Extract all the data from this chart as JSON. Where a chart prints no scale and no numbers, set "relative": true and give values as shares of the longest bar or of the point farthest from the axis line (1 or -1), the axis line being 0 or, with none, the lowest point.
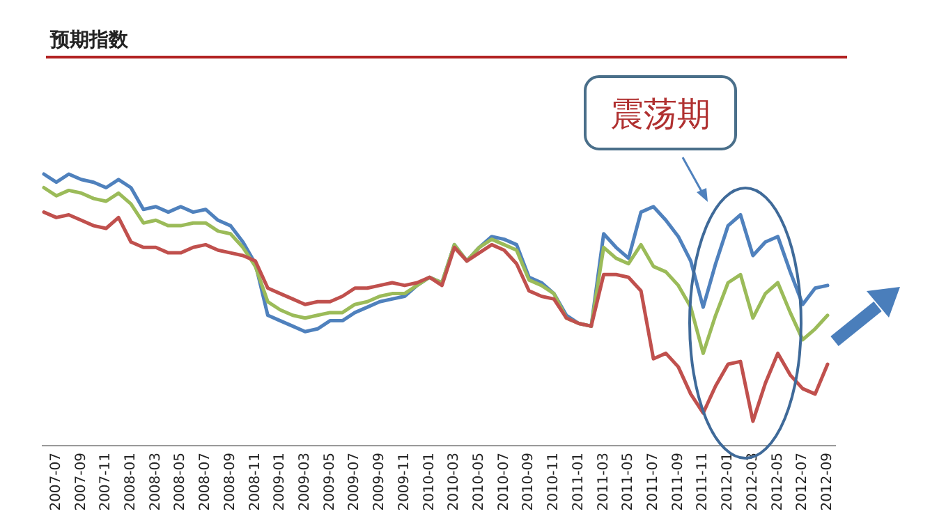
{
  "chart_data": {
    "type": "line",
    "title": "预期指数",
    "annotations": [
      "震荡期"
    ],
    "relative": true,
    "categories": [
      null,
      "2007-07",
      null,
      "2007-09",
      null,
      "2007-11",
      null,
      "2008-01",
      null,
      "2008-03",
      null,
      "2008-05",
      null,
      "2008-07",
      null,
      "2008-09",
      null,
      "2008-11",
      null,
      "2009-01",
      null,
      "2009-03",
      null,
      "2009-05",
      null,
      "2009-07",
      null,
      "2009-09",
      null,
      "2009-11",
      null,
      "2010-01",
      null,
      "2010-03",
      null,
      "2010-05",
      null,
      "2010-07",
      null,
      "2010-09",
      null,
      "2010-11",
      null,
      "2011-01",
      null,
      "2011-03",
      null,
      "2011-05",
      null,
      "2011-07",
      null,
      "2011-09",
      null,
      "2011-11",
      null,
      "2012-01",
      null,
      "2012-03",
      null,
      "2012-05",
      null,
      "2012-07",
      null,
      "2012-09"
    ],
    "series": [
      {
        "color": "#4f81bd",
        "values": [
          1.0,
          0.97,
          1.0,
          0.98,
          0.97,
          0.95,
          0.98,
          0.95,
          0.87,
          0.88,
          0.86,
          0.88,
          0.86,
          0.87,
          0.83,
          0.81,
          0.75,
          0.67,
          0.48,
          0.46,
          0.44,
          0.42,
          0.43,
          0.46,
          0.46,
          0.49,
          0.51,
          0.53,
          0.54,
          0.55,
          0.59,
          0.62,
          0.6,
          0.74,
          0.68,
          0.73,
          0.77,
          0.76,
          0.74,
          0.62,
          0.6,
          0.56,
          0.48,
          0.45,
          0.44,
          0.78,
          0.73,
          0.69,
          0.86,
          0.88,
          0.83,
          0.77,
          0.68,
          0.51,
          0.67,
          0.81,
          0.85,
          0.7,
          0.75,
          0.77,
          0.64,
          0.52,
          0.58,
          0.59
        ]
      },
      {
        "color": "#9bbb59",
        "values": [
          0.95,
          0.92,
          0.94,
          0.93,
          0.91,
          0.9,
          0.93,
          0.89,
          0.82,
          0.83,
          0.81,
          0.81,
          0.82,
          0.82,
          0.79,
          0.78,
          0.73,
          0.66,
          0.53,
          0.5,
          0.48,
          0.47,
          0.48,
          0.49,
          0.49,
          0.52,
          0.53,
          0.55,
          0.56,
          0.56,
          0.59,
          0.62,
          0.6,
          0.74,
          0.68,
          0.73,
          0.76,
          0.74,
          0.72,
          0.61,
          0.59,
          0.56,
          0.47,
          0.45,
          0.44,
          0.73,
          0.69,
          0.67,
          0.74,
          0.66,
          0.64,
          0.59,
          0.51,
          0.34,
          0.48,
          0.6,
          0.63,
          0.47,
          0.56,
          0.6,
          0.49,
          0.39,
          0.43,
          0.48
        ]
      },
      {
        "color": "#c0504d",
        "values": [
          0.86,
          0.84,
          0.85,
          0.83,
          0.81,
          0.8,
          0.84,
          0.75,
          0.73,
          0.73,
          0.71,
          0.71,
          0.73,
          0.74,
          0.72,
          0.71,
          0.7,
          0.68,
          0.58,
          0.56,
          0.54,
          0.52,
          0.53,
          0.53,
          0.55,
          0.58,
          0.58,
          0.59,
          0.6,
          0.59,
          0.6,
          0.62,
          0.59,
          0.73,
          0.68,
          0.71,
          0.74,
          0.72,
          0.67,
          0.57,
          0.55,
          0.54,
          0.47,
          0.45,
          0.44,
          0.63,
          0.63,
          0.62,
          0.57,
          0.32,
          0.34,
          0.29,
          0.19,
          0.12,
          0.22,
          0.3,
          0.31,
          0.09,
          0.23,
          0.34,
          0.26,
          0.21,
          0.19,
          0.3
        ]
      }
    ]
  }
}
